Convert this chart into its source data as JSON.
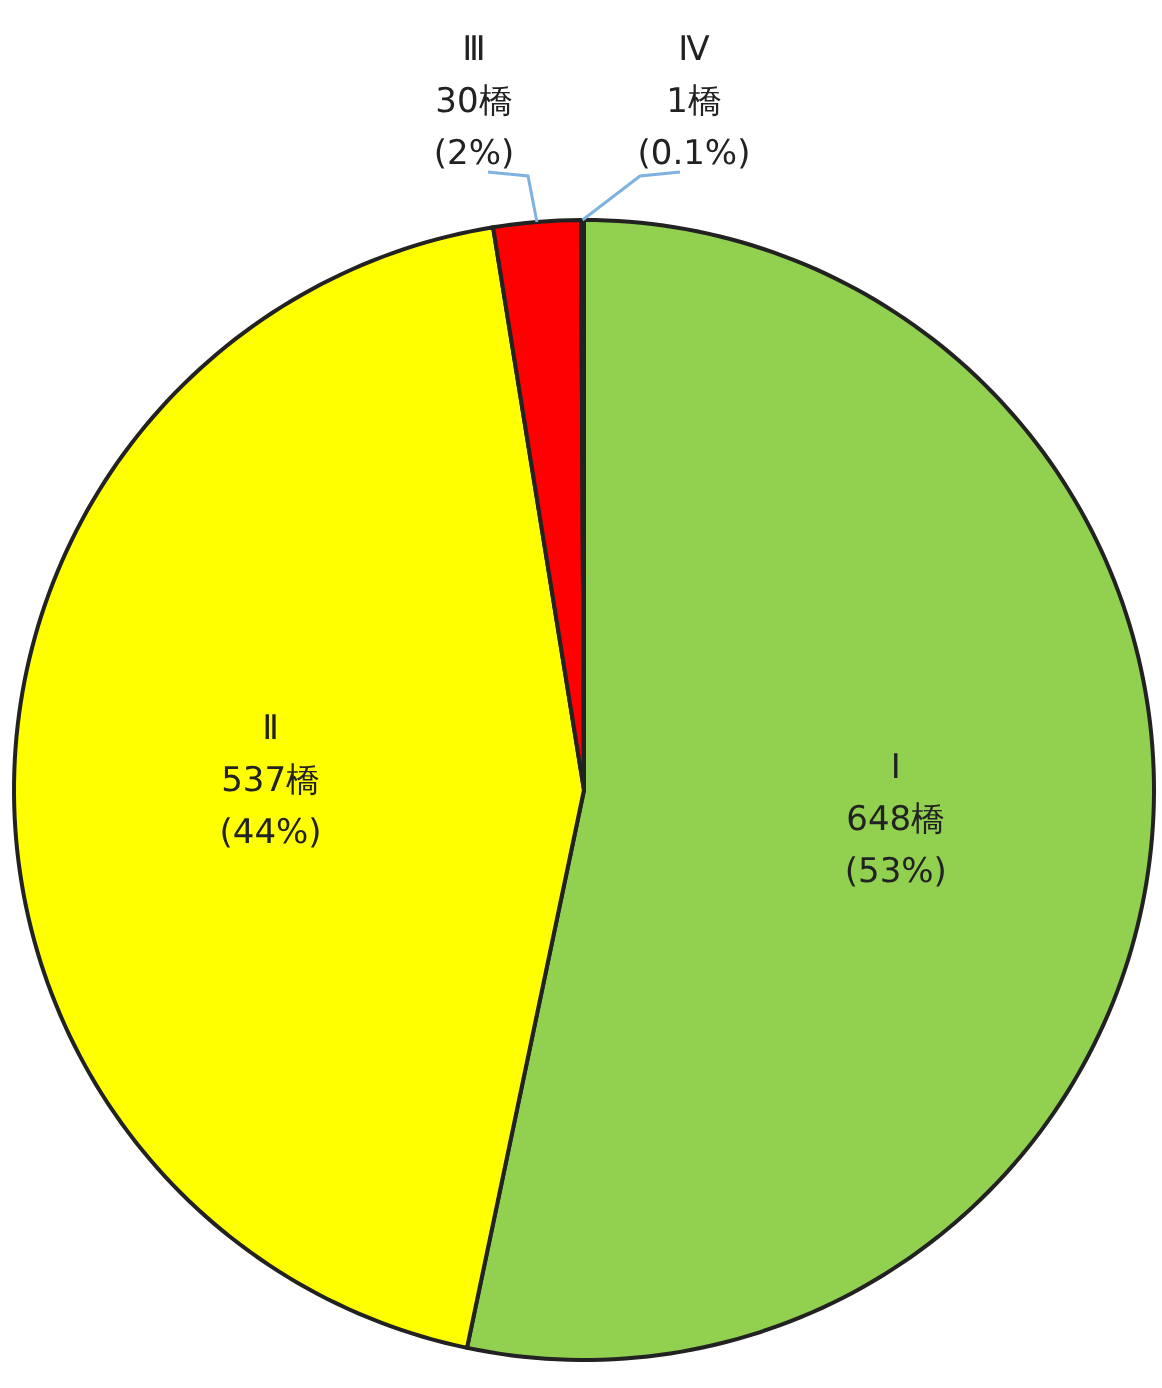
{
  "chart_data": {
    "type": "pie",
    "categories": [
      "Ⅰ",
      "Ⅱ",
      "Ⅲ",
      "Ⅳ"
    ],
    "values": [
      648,
      537,
      30,
      1
    ],
    "colors": [
      "#92d050",
      "#ffff00",
      "#ff0000",
      "#0070c0"
    ],
    "value_labels": [
      "648橋\n(53%)",
      "537橋\n(44%)",
      "30橋\n(2%)",
      "1橋\n(0.1%)"
    ]
  }
}
